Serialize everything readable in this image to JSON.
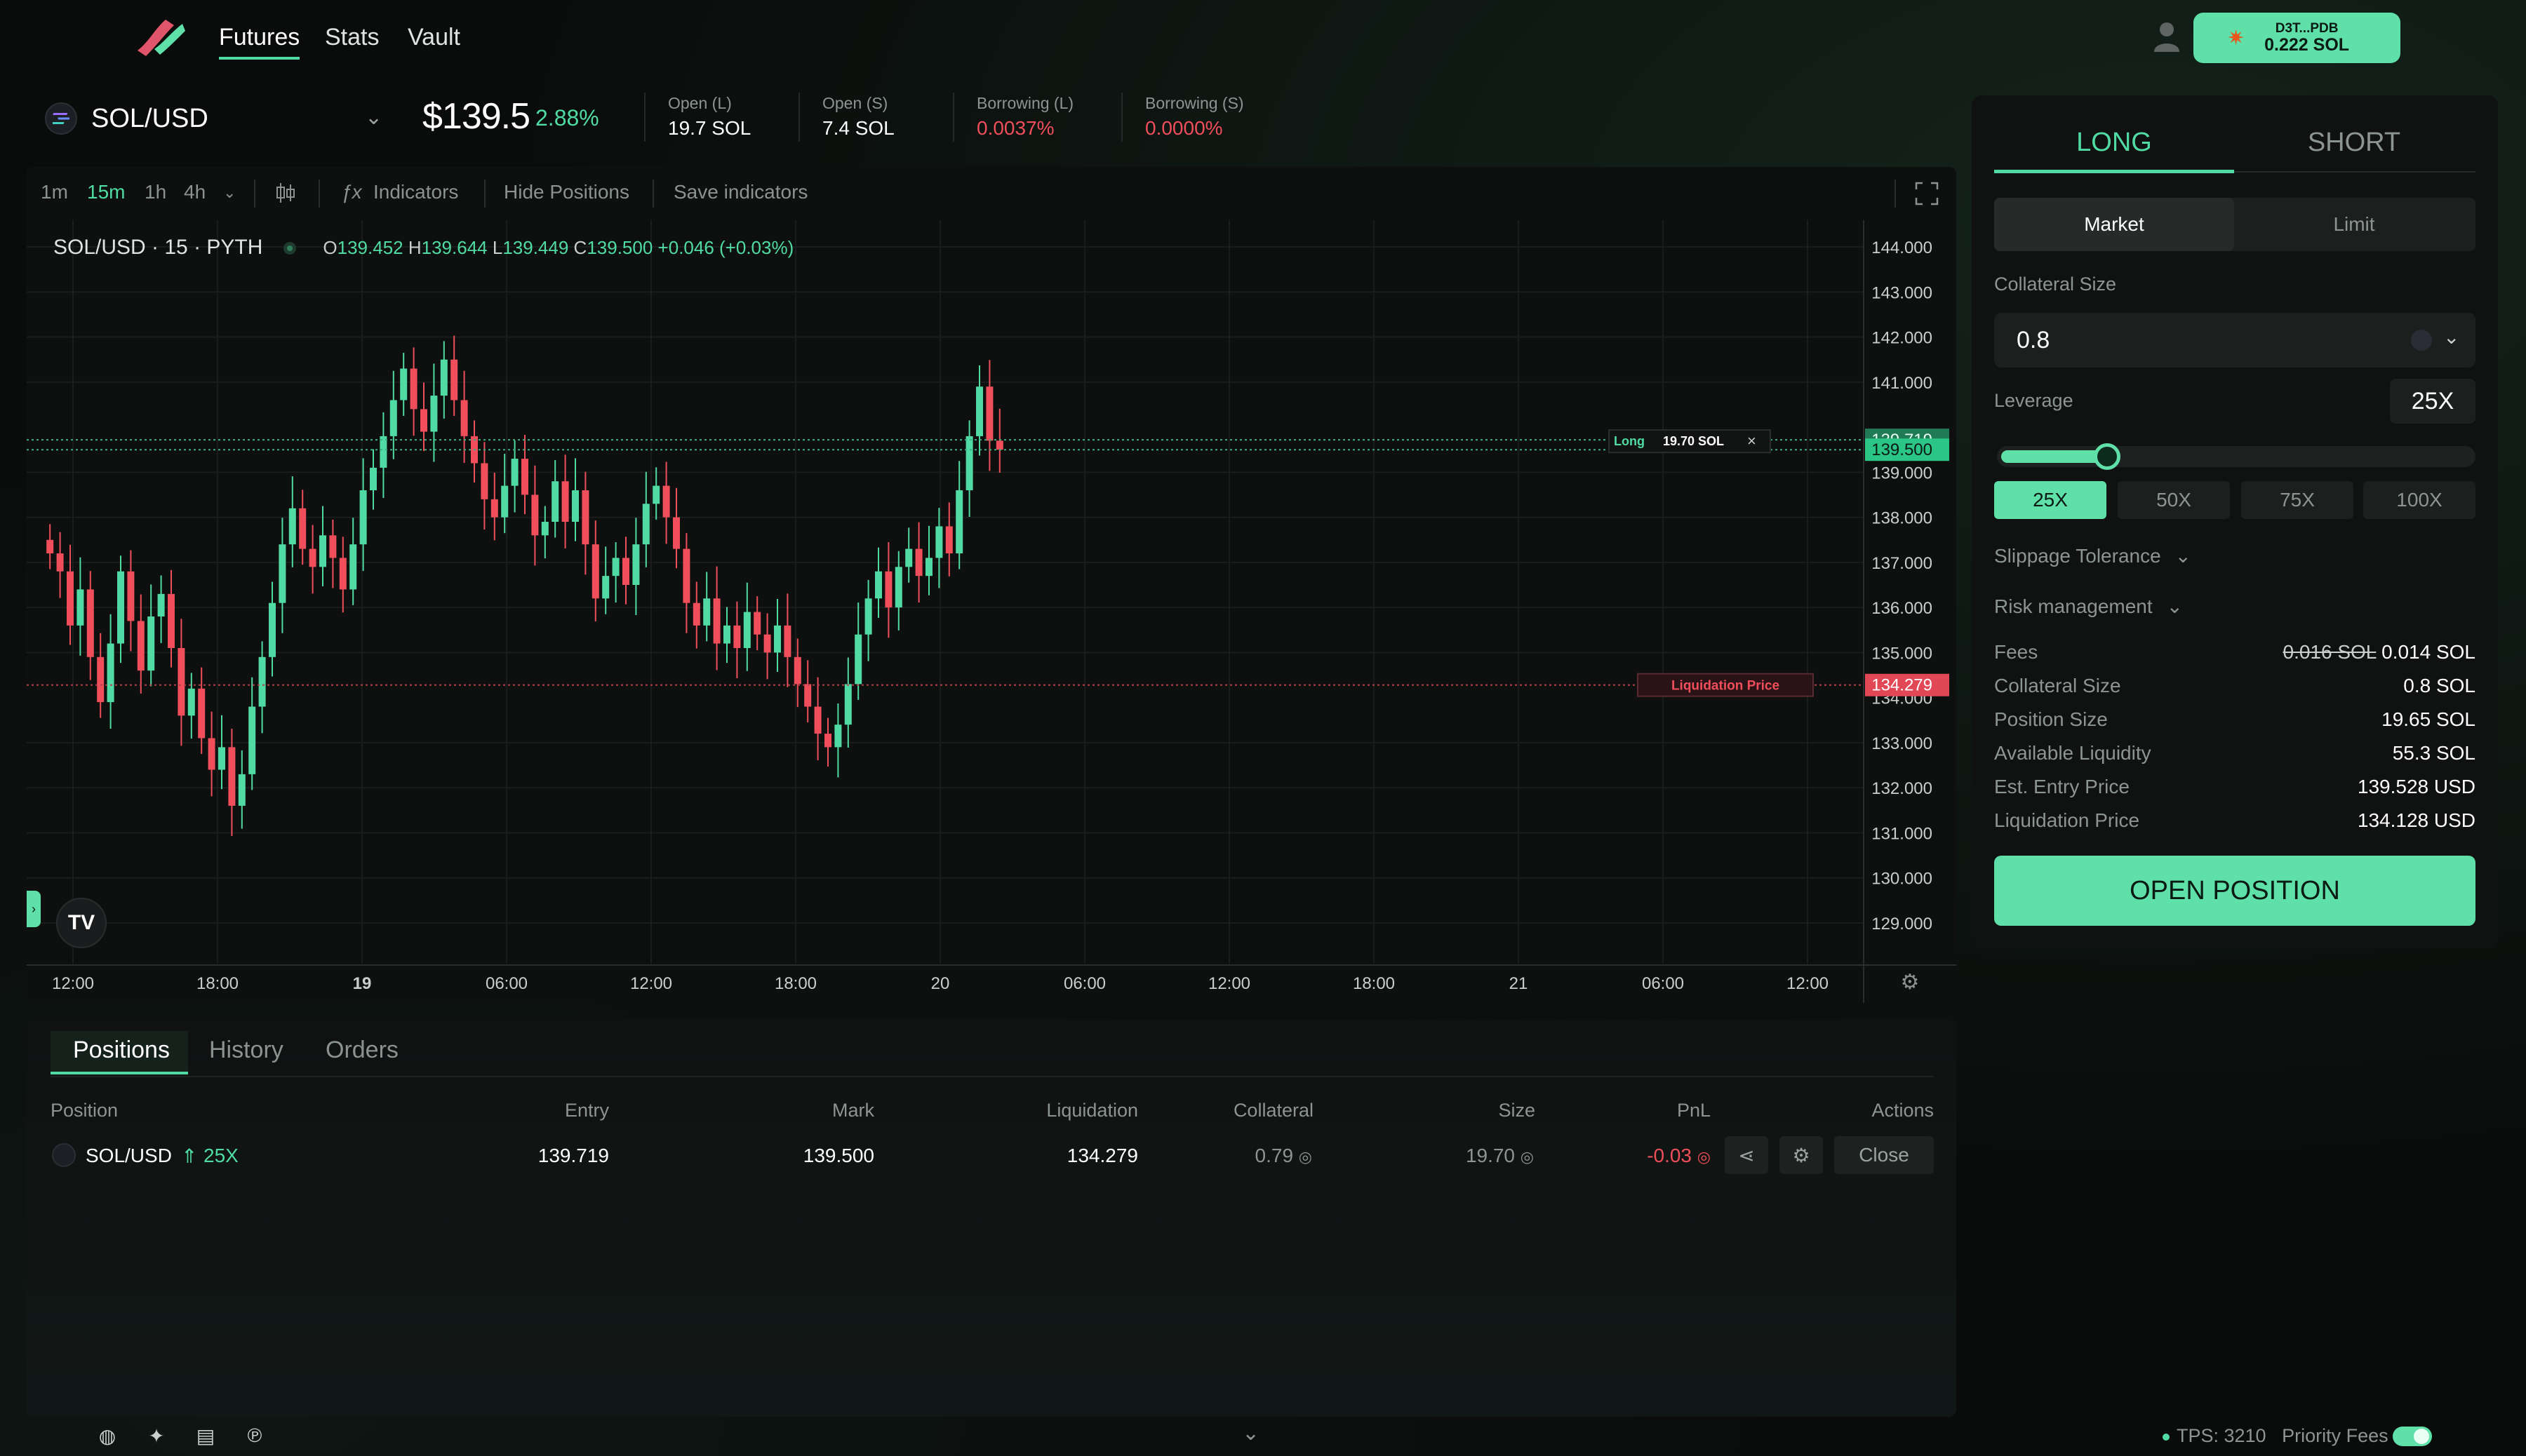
{
  "nav": {
    "links": [
      "Futures",
      "Stats",
      "Vault"
    ],
    "wallet_address": "D3T...PDB",
    "wallet_balance": "0.222 SOL"
  },
  "market": {
    "pair": "SOL/USD",
    "price": "$139.5",
    "change": "2.88%",
    "stats": [
      {
        "label": "Open (L)",
        "value": "19.7 SOL"
      },
      {
        "label": "Open (S)",
        "value": "7.4 SOL"
      },
      {
        "label": "Borrowing (L)",
        "value": "0.0037%"
      },
      {
        "label": "Borrowing (S)",
        "value": "0.0000%"
      }
    ]
  },
  "toolbar": {
    "intervals": [
      "1m",
      "15m",
      "1h",
      "4h"
    ],
    "active_interval": "15m",
    "indicators": "Indicators",
    "hide_positions": "Hide Positions",
    "save_indicators": "Save indicators"
  },
  "chart_legend": {
    "title": "SOL/USD · 15 · PYTH",
    "o_label": "O",
    "o": "139.452",
    "h_label": "H",
    "h": "139.644",
    "l_label": "L",
    "l": "139.449",
    "c_label": "C",
    "c": "139.500",
    "chg": "+0.046 (+0.03%)"
  },
  "chart_data": {
    "type": "candlestick",
    "ylim": [
      129,
      144
    ],
    "y_ticks": [
      "144.000",
      "143.000",
      "142.000",
      "141.000",
      "139.000",
      "138.000",
      "137.000",
      "136.000",
      "135.000",
      "133.000",
      "132.000",
      "131.000",
      "130.000",
      "129.000"
    ],
    "x_ticks": [
      "12:00",
      "18:00",
      "19",
      "06:00",
      "12:00",
      "18:00",
      "20",
      "06:00",
      "12:00",
      "18:00",
      "21",
      "06:00",
      "12:00"
    ],
    "x_ticks_bold": [
      "19",
      "20",
      "21"
    ],
    "price_labels": {
      "entry": "139.719",
      "current": "139.500",
      "liquidation": "134.279",
      "partial_hidden_tick": "134.000"
    },
    "position_tag": {
      "side": "Long",
      "size": "19.70 SOL"
    },
    "liquidation_tag": "Liquidation Price",
    "closes": [
      137.2,
      136.8,
      135.6,
      136.4,
      134.9,
      133.9,
      135.2,
      136.8,
      135.7,
      134.6,
      135.8,
      136.3,
      135.1,
      133.6,
      134.2,
      133.1,
      132.4,
      132.9,
      131.6,
      132.3,
      133.8,
      134.9,
      136.1,
      137.4,
      138.2,
      137.3,
      136.9,
      137.6,
      137.1,
      136.4,
      137.4,
      138.6,
      139.1,
      139.8,
      140.6,
      141.3,
      140.4,
      139.9,
      140.7,
      141.5,
      140.6,
      139.8,
      139.2,
      138.4,
      138.0,
      138.7,
      139.3,
      138.5,
      137.6,
      137.9,
      138.8,
      137.9,
      138.6,
      137.4,
      136.2,
      136.7,
      137.1,
      136.5,
      137.4,
      138.3,
      138.7,
      138.0,
      137.3,
      136.1,
      135.6,
      136.2,
      135.2,
      135.6,
      135.1,
      135.9,
      135.4,
      135.0,
      135.6,
      134.9,
      134.3,
      133.8,
      133.2,
      132.9,
      133.4,
      134.3,
      135.4,
      136.2,
      136.8,
      136.0,
      136.9,
      137.3,
      136.7,
      137.1,
      137.8,
      137.2,
      138.6,
      139.8,
      140.9,
      139.7,
      139.5
    ],
    "entry_price": 139.719,
    "current_price": 139.5,
    "liquidation_price": 134.279
  },
  "positions": {
    "tabs": [
      "Positions",
      "History",
      "Orders"
    ],
    "headers": [
      "Position",
      "Entry",
      "Mark",
      "Liquidation",
      "Collateral",
      "Size",
      "PnL",
      "Actions"
    ],
    "rows": [
      {
        "pair": "SOL/USD",
        "leverage": "25X",
        "entry": "139.719",
        "mark": "139.500",
        "liquidation": "134.279",
        "collateral": "0.79",
        "size": "19.70",
        "pnl": "-0.03",
        "close": "Close"
      }
    ]
  },
  "trade": {
    "long": "LONG",
    "short": "SHORT",
    "market": "Market",
    "limit": "Limit",
    "collateral_label": "Collateral Size",
    "collateral_value": "0.8",
    "leverage_label": "Leverage",
    "leverage_value": "25X",
    "leverage_fraction": 0.0,
    "leverage_options": [
      "25X",
      "50X",
      "75X",
      "100X"
    ],
    "slippage": "Slippage Tolerance",
    "risk": "Risk management",
    "fees_label": "Fees",
    "fees_old": "0.016 SOL",
    "fees_new": "0.014 SOL",
    "rows": [
      {
        "label": "Collateral Size",
        "value": "0.8 SOL"
      },
      {
        "label": "Position Size",
        "value": "19.65 SOL"
      },
      {
        "label": "Available Liquidity",
        "value": "55.3 SOL"
      },
      {
        "label": "Est. Entry Price",
        "value": "139.528 USD"
      },
      {
        "label": "Liquidation Price",
        "value": "134.128 USD"
      }
    ],
    "open_button": "OPEN POSITION"
  },
  "footer": {
    "tps": "TPS: 3210",
    "priority_fees": "Priority Fees"
  },
  "colors": {
    "accent": "#5ee0a8",
    "up": "#4fdba3",
    "down": "#ef4e5a"
  }
}
